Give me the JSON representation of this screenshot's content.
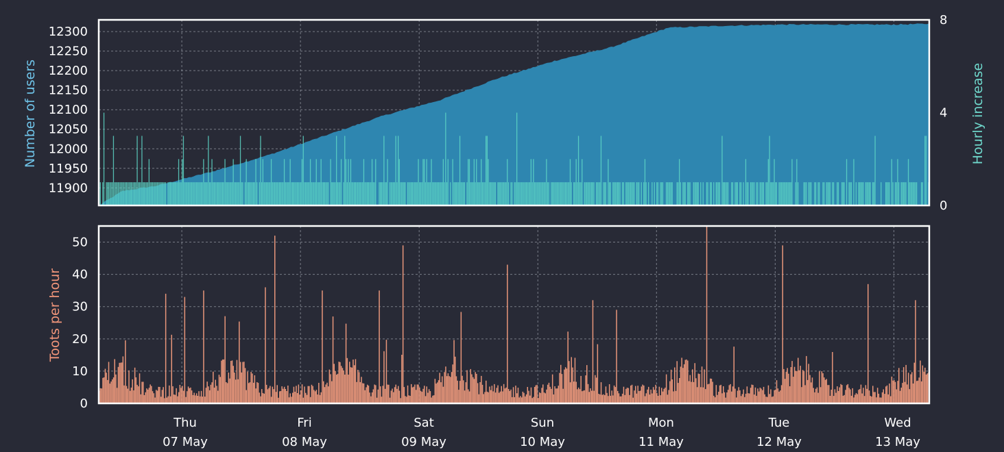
{
  "chart_data": [
    {
      "type": "area",
      "ylabel": "Number of users",
      "y2label": "Hourly increase",
      "ylim": [
        11855,
        12330
      ],
      "y2lim": [
        0,
        8
      ],
      "yticks": [
        "11900",
        "11950",
        "12000",
        "12050",
        "12100",
        "12150",
        "12200",
        "12250",
        "12300"
      ],
      "y2ticks": [
        "0",
        "4",
        "8"
      ],
      "grid": true,
      "colors": {
        "users": "#2e86b0",
        "increase": "#5dd6c6",
        "ylabel": "#6fc3e8",
        "y2label": "#6fd8cc"
      },
      "series": [
        {
          "x_hours": [
            0,
            5,
            12,
            24,
            36,
            48,
            60,
            72,
            84,
            96,
            108,
            120,
            132,
            144,
            156,
            168,
            175
          ],
          "values": [
            11855,
            11892,
            11905,
            11942,
            11985,
            12035,
            12085,
            12125,
            12180,
            12225,
            12260,
            12310,
            12315,
            12318,
            12318,
            12318,
            12320
          ]
        },
        {
          "x_hours": [
            0,
            175
          ],
          "values": [
            1,
            1
          ],
          "spike_hours": [
            1,
            3,
            9,
            23,
            34,
            39,
            50,
            60,
            63,
            73,
            88,
            101,
            113,
            115,
            127,
            141,
            154,
            167
          ],
          "spike_values": [
            4,
            3,
            3,
            3,
            3,
            2,
            3,
            3,
            3,
            4,
            4,
            3,
            3,
            2,
            2,
            2,
            2,
            2
          ]
        }
      ]
    },
    {
      "type": "bar",
      "ylabel": "Toots per hour",
      "ylim": [
        0,
        55
      ],
      "yticks": [
        "0",
        "10",
        "20",
        "30",
        "40",
        "50"
      ],
      "grid": true,
      "colors": {
        "bars": "#e8967a",
        "ylabel": "#f0957a"
      },
      "x_day_labels": [
        {
          "day": "Thu",
          "date": "07 May"
        },
        {
          "day": "Fri",
          "date": "08 May"
        },
        {
          "day": "Sat",
          "date": "09 May"
        },
        {
          "day": "Sun",
          "date": "10 May"
        },
        {
          "day": "Mon",
          "date": "11 May"
        },
        {
          "day": "Tue",
          "date": "12 May"
        },
        {
          "day": "Wed",
          "date": "13 May"
        }
      ],
      "peaks": [
        {
          "hour": 14,
          "value": 34
        },
        {
          "hour": 18,
          "value": 33
        },
        {
          "hour": 22,
          "value": 35
        },
        {
          "hour": 35,
          "value": 36
        },
        {
          "hour": 37,
          "value": 52
        },
        {
          "hour": 47,
          "value": 35
        },
        {
          "hour": 59,
          "value": 35
        },
        {
          "hour": 64,
          "value": 49
        },
        {
          "hour": 86,
          "value": 43
        },
        {
          "hour": 104,
          "value": 32
        },
        {
          "hour": 109,
          "value": 29
        },
        {
          "hour": 128,
          "value": 55
        },
        {
          "hour": 144,
          "value": 49
        },
        {
          "hour": 162,
          "value": 37
        },
        {
          "hour": 172,
          "value": 32
        }
      ]
    }
  ]
}
